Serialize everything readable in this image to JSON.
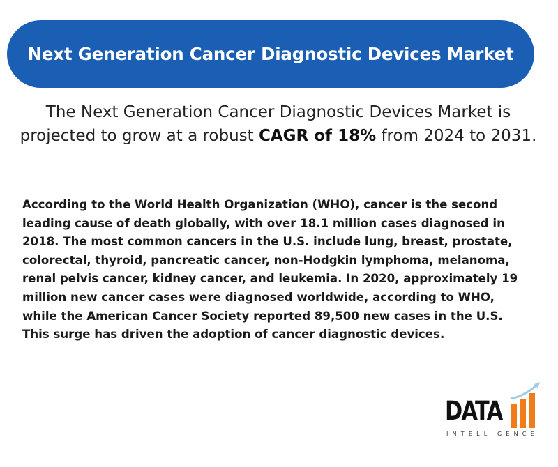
{
  "banner": {
    "title": "Next Generation Cancer Diagnostic Devices Market"
  },
  "lead": {
    "text_before": "The Next Generation Cancer Diagnostic Devices Market is projected to grow at a robust ",
    "highlight": "CAGR of 18%",
    "text_after": " from 2024 to 2031."
  },
  "body": {
    "paragraph": "According to the World Health Organization (WHO), cancer is the second leading cause of death globally, with over 18.1 million cases diagnosed in 2018. The most common cancers in the U.S. include lung, breast, prostate, colorectal, thyroid, pancreatic cancer, non-Hodgkin lymphoma, melanoma, renal pelvis cancer, kidney cancer, and leukemia. In 2020, approximately 19 million new cancer cases were diagnosed worldwide, according to WHO, while the American Cancer Society reported 89,500 new cases in the U.S. This surge has driven the adoption of cancer diagnostic devices."
  },
  "logo": {
    "word": "DATA",
    "subtitle": "INTELLIGENCE"
  },
  "colors": {
    "banner": "#1a5fb4",
    "logo_bars": "#f07d1a",
    "logo_arrow": "#9ecbe6"
  }
}
